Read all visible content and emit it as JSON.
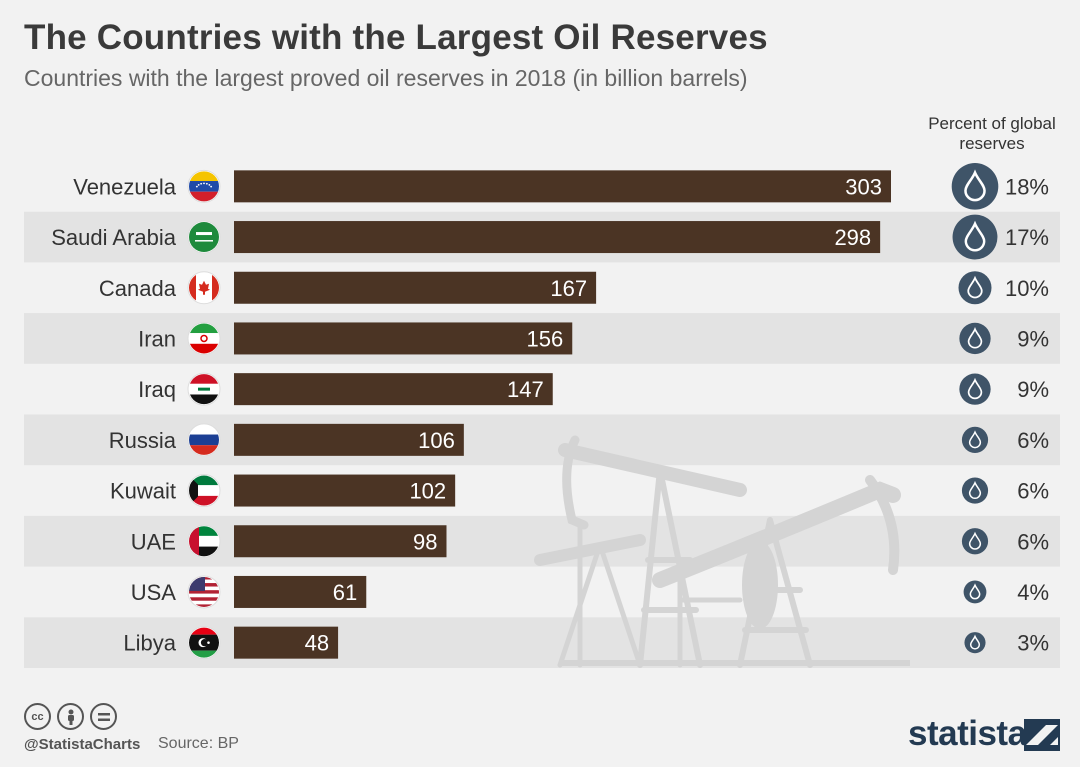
{
  "title": "The Countries with the Largest Oil Reserves",
  "subtitle": "Countries with the largest proved oil reserves in 2018 (in billion barrels)",
  "percent_header": "Percent of global reserves",
  "footer": {
    "handle": "@StatistaCharts",
    "source": "Source: BP",
    "brand": "statista"
  },
  "icons": {
    "license": [
      "cc-icon",
      "by-icon",
      "nd-icon"
    ],
    "drop": "oil-drop-icon",
    "background": "oil-pumpjack-icon",
    "brand": "statista-logo-icon"
  },
  "colors": {
    "bar": "#4b3424",
    "drop_circle": "#3f5468",
    "stripe": "#e3e3e3",
    "background": "#f2f2f2"
  },
  "chart_data": {
    "type": "bar",
    "orientation": "horizontal",
    "categories": [
      "Venezuela",
      "Saudi Arabia",
      "Canada",
      "Iran",
      "Iraq",
      "Russia",
      "Kuwait",
      "UAE",
      "USA",
      "Libya"
    ],
    "values": [
      303,
      298,
      167,
      156,
      147,
      106,
      102,
      98,
      61,
      48
    ],
    "percent": [
      "18%",
      "17%",
      "10%",
      "9%",
      "9%",
      "6%",
      "6%",
      "6%",
      "4%",
      "3%"
    ],
    "flags": [
      "flag-venezuela-icon",
      "flag-saudi-arabia-icon",
      "flag-canada-icon",
      "flag-iran-icon",
      "flag-iraq-icon",
      "flag-russia-icon",
      "flag-kuwait-icon",
      "flag-uae-icon",
      "flag-usa-icon",
      "flag-libya-icon"
    ],
    "xlim": [
      0,
      303
    ],
    "grid": false,
    "legend": "none"
  }
}
